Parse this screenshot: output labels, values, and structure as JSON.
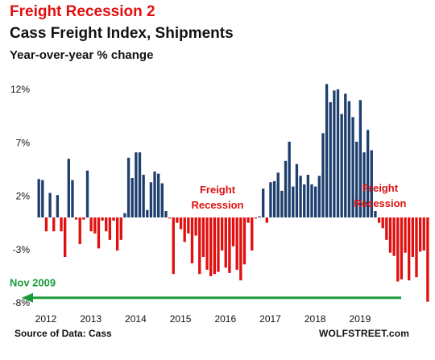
{
  "header": {
    "kicker": "Freight Recession 2",
    "title": "Cass Freight Index, Shipments",
    "subtitle": "Year-over-year % change"
  },
  "footer": {
    "source": "Source of Data: Cass",
    "brand": "WOLFSTREET.com"
  },
  "colors": {
    "positive": "#1f3f6e",
    "negative": "#e01010",
    "kicker": "#e01010",
    "reference_line": "#1b9a3a"
  },
  "chart_data": {
    "type": "bar",
    "title": "Cass Freight Index, Shipments",
    "subtitle": "Year-over-year % change",
    "xlabel": "",
    "ylabel": "",
    "y_ticks": [
      12,
      7,
      2,
      -3,
      -8
    ],
    "y_tick_labels": [
      "12%",
      "7%",
      "2%",
      "-3%",
      "-8%"
    ],
    "ylim": [
      -8.3,
      12.8
    ],
    "x_tick_labels": [
      "2012",
      "2013",
      "2014",
      "2015",
      "2016",
      "2017",
      "2018",
      "2019"
    ],
    "grid": false,
    "x_start": "2012-01",
    "x_end": "2019-11",
    "values": [
      3.6,
      3.5,
      -1.3,
      2.3,
      -1.3,
      2.1,
      -1.3,
      -3.7,
      5.5,
      3.5,
      -0.2,
      -2.5,
      -0.2,
      4.4,
      -1.3,
      -1.5,
      -2.9,
      -0.3,
      -1.3,
      -2.1,
      -0.3,
      -3.1,
      -2.1,
      0.4,
      5.6,
      3.7,
      6.1,
      6.1,
      4.0,
      0.7,
      3.3,
      4.3,
      4.1,
      3.2,
      0.6,
      -0.1,
      -5.3,
      -0.5,
      -1.1,
      -2.3,
      -1.5,
      -4.3,
      -1.7,
      -5.3,
      -3.7,
      -4.9,
      -5.5,
      -5.3,
      -5.1,
      -3.1,
      -4.7,
      -5.2,
      -2.7,
      -4.9,
      -5.9,
      -4.4,
      -0.5,
      -3.1,
      -0.1,
      0.1,
      2.7,
      -0.5,
      3.3,
      3.4,
      4.2,
      2.5,
      5.3,
      7.1,
      2.9,
      5.0,
      3.9,
      3.1,
      4.0,
      3.1,
      2.9,
      3.9,
      7.9,
      12.5,
      10.8,
      11.9,
      12.0,
      9.7,
      11.6,
      10.9,
      9.4,
      7.1,
      11.0,
      6.1,
      8.2,
      6.3,
      0.6,
      -0.5,
      -1.0,
      -2.1,
      -3.3,
      -3.6,
      -6.0,
      -5.8,
      -3.3,
      -5.9,
      -3.7,
      -5.6,
      -3.2,
      -3.1,
      -7.9
    ],
    "annotations": [
      {
        "lines": [
          "Freight",
          "Recession"
        ],
        "period": "2015–2016"
      },
      {
        "lines": [
          "Freight",
          "Recession"
        ],
        "period": "2019"
      }
    ],
    "reference": {
      "label": "Nov 2009",
      "value": -7.6
    }
  }
}
